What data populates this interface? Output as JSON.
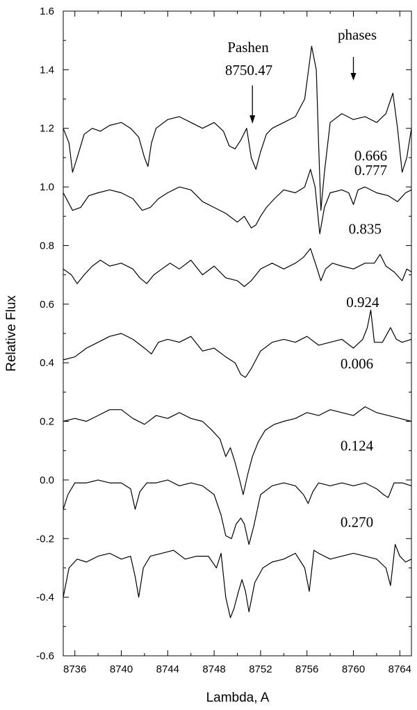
{
  "chart_data": {
    "type": "line",
    "title": "",
    "xlabel": "Lambda, A",
    "ylabel": "Relative Flux",
    "xlim": [
      8735,
      8765
    ],
    "ylim": [
      -0.6,
      1.6
    ],
    "x_ticks": [
      8736,
      8740,
      8744,
      8748,
      8752,
      8756,
      8760,
      8764
    ],
    "y_ticks": [
      -0.6,
      -0.4,
      -0.2,
      0.0,
      0.2,
      0.4,
      0.6,
      0.8,
      1.0,
      1.2,
      1.4,
      1.6
    ],
    "y_tick_labels": [
      "-0.6",
      "-0.4",
      "-0.2",
      "0.0",
      "0.2",
      "0.4",
      "0.6",
      "0.8",
      "1.0",
      "1.2",
      "1.4",
      "1.6"
    ],
    "grid": false,
    "annotations": {
      "pashen_label_1": "Pashen",
      "pashen_label_2": "8750.47",
      "pashen_arrow_x": 8751.3,
      "phases_label": "phases",
      "phases_arrow_x": 8760.0
    },
    "series": [
      {
        "name": "0.666",
        "x": [
          8735.0,
          8735.5,
          8735.8,
          8736.2,
          8736.8,
          8737.5,
          8738.2,
          8739.0,
          8740.0,
          8740.8,
          8741.5,
          8742.0,
          8742.3,
          8742.6,
          8743.0,
          8744.0,
          8745.0,
          8746.0,
          8747.0,
          8748.0,
          8748.8,
          8749.3,
          8749.8,
          8750.3,
          8750.8,
          8751.2,
          8751.6,
          8752.0,
          8752.5,
          8753.0,
          8754.0,
          8755.0,
          8755.8,
          8756.4,
          8756.8,
          8757.0,
          8757.2,
          8757.5,
          8758.0,
          8759.0,
          8760.0,
          8761.0,
          8762.0,
          8762.8,
          8763.4,
          8763.8,
          8764.2,
          8764.6,
          8765.0
        ],
        "y": [
          1.2,
          1.15,
          1.05,
          1.1,
          1.18,
          1.2,
          1.19,
          1.21,
          1.22,
          1.2,
          1.17,
          1.1,
          1.07,
          1.15,
          1.2,
          1.23,
          1.24,
          1.22,
          1.2,
          1.22,
          1.19,
          1.14,
          1.13,
          1.16,
          1.2,
          1.1,
          1.06,
          1.12,
          1.18,
          1.2,
          1.22,
          1.24,
          1.3,
          1.48,
          1.4,
          1.15,
          0.92,
          1.05,
          1.22,
          1.25,
          1.23,
          1.24,
          1.22,
          1.25,
          1.32,
          1.2,
          1.05,
          1.1,
          1.2
        ]
      },
      {
        "name": "0.777",
        "x": [
          8735.0,
          8735.8,
          8736.5,
          8737.2,
          8738.0,
          8739.0,
          8740.0,
          8741.0,
          8741.8,
          8742.5,
          8743.2,
          8744.0,
          8745.0,
          8746.0,
          8747.0,
          8748.0,
          8749.0,
          8750.0,
          8750.6,
          8751.2,
          8751.6,
          8752.0,
          8752.5,
          8753.2,
          8754.0,
          8755.0,
          8755.8,
          8756.3,
          8756.7,
          8757.1,
          8757.5,
          8758.0,
          8759.0,
          8759.6,
          8760.0,
          8760.4,
          8761.0,
          8762.0,
          8763.0,
          8763.8,
          8764.5,
          8765.0
        ],
        "y": [
          0.98,
          0.92,
          0.93,
          0.97,
          0.98,
          0.99,
          0.98,
          0.96,
          0.92,
          0.93,
          0.96,
          0.98,
          1.0,
          0.99,
          0.95,
          0.93,
          0.91,
          0.88,
          0.9,
          0.86,
          0.87,
          0.9,
          0.93,
          0.96,
          0.99,
          0.98,
          1.0,
          1.06,
          1.0,
          0.84,
          0.93,
          0.98,
          0.99,
          0.98,
          0.94,
          0.99,
          1.0,
          0.98,
          0.97,
          0.95,
          0.98,
          0.99
        ]
      },
      {
        "name": "0.835",
        "x": [
          8735.0,
          8735.7,
          8736.2,
          8736.8,
          8737.5,
          8738.2,
          8739.0,
          8740.0,
          8741.0,
          8741.6,
          8742.2,
          8742.8,
          8743.5,
          8744.2,
          8745.0,
          8746.0,
          8747.0,
          8748.0,
          8749.0,
          8750.0,
          8750.6,
          8751.2,
          8752.0,
          8753.0,
          8754.0,
          8755.0,
          8755.7,
          8756.3,
          8756.8,
          8757.2,
          8757.6,
          8758.2,
          8759.0,
          8760.0,
          8761.0,
          8761.8,
          8762.3,
          8762.8,
          8763.5,
          8764.2,
          8764.6,
          8765.0
        ],
        "y": [
          0.72,
          0.7,
          0.67,
          0.7,
          0.73,
          0.75,
          0.73,
          0.74,
          0.72,
          0.69,
          0.67,
          0.7,
          0.72,
          0.74,
          0.72,
          0.75,
          0.7,
          0.73,
          0.69,
          0.68,
          0.66,
          0.68,
          0.72,
          0.74,
          0.72,
          0.74,
          0.76,
          0.79,
          0.73,
          0.68,
          0.72,
          0.74,
          0.73,
          0.72,
          0.74,
          0.74,
          0.77,
          0.73,
          0.71,
          0.68,
          0.72,
          0.71
        ]
      },
      {
        "name": "0.924",
        "x": [
          8735.0,
          8736.0,
          8737.0,
          8738.0,
          8739.0,
          8740.0,
          8741.0,
          8742.0,
          8742.6,
          8743.2,
          8744.0,
          8745.0,
          8746.0,
          8747.0,
          8748.0,
          8749.0,
          8749.8,
          8750.3,
          8750.7,
          8751.2,
          8752.0,
          8753.0,
          8754.0,
          8755.0,
          8756.0,
          8757.0,
          8758.0,
          8759.0,
          8760.0,
          8760.8,
          8761.2,
          8761.5,
          8761.8,
          8762.5,
          8763.2,
          8763.7,
          8764.2,
          8765.0
        ],
        "y": [
          0.41,
          0.42,
          0.45,
          0.47,
          0.49,
          0.5,
          0.48,
          0.45,
          0.43,
          0.47,
          0.48,
          0.47,
          0.49,
          0.44,
          0.45,
          0.42,
          0.4,
          0.36,
          0.35,
          0.38,
          0.44,
          0.47,
          0.48,
          0.47,
          0.49,
          0.46,
          0.47,
          0.48,
          0.45,
          0.48,
          0.52,
          0.58,
          0.47,
          0.47,
          0.52,
          0.48,
          0.47,
          0.48
        ]
      },
      {
        "name": "0.006",
        "x": [
          8735.0,
          8736.0,
          8737.0,
          8738.0,
          8739.0,
          8740.0,
          8741.0,
          8742.0,
          8743.0,
          8744.0,
          8745.0,
          8746.0,
          8747.0,
          8747.8,
          8748.5,
          8749.0,
          8749.4,
          8749.8,
          8750.2,
          8750.5,
          8750.9,
          8751.3,
          8751.8,
          8752.4,
          8753.2,
          8754.0,
          8755.0,
          8756.0,
          8757.0,
          8758.0,
          8759.0,
          8760.0,
          8761.0,
          8762.0,
          8763.0,
          8764.0,
          8765.0
        ],
        "y": [
          0.2,
          0.21,
          0.2,
          0.22,
          0.24,
          0.24,
          0.21,
          0.19,
          0.22,
          0.21,
          0.23,
          0.21,
          0.2,
          0.17,
          0.14,
          0.08,
          0.11,
          0.06,
          0.0,
          -0.05,
          0.02,
          0.08,
          0.13,
          0.17,
          0.19,
          0.2,
          0.21,
          0.23,
          0.22,
          0.24,
          0.23,
          0.22,
          0.25,
          0.23,
          0.22,
          0.21,
          0.2
        ]
      },
      {
        "name": "0.124",
        "x": [
          8735.0,
          8735.4,
          8736.0,
          8737.0,
          8738.0,
          8739.0,
          8740.0,
          8740.8,
          8741.2,
          8741.6,
          8742.2,
          8743.0,
          8744.0,
          8745.0,
          8746.0,
          8747.0,
          8748.0,
          8748.6,
          8749.0,
          8749.5,
          8749.9,
          8750.3,
          8750.6,
          8751.0,
          8751.4,
          8752.0,
          8753.0,
          8754.0,
          8755.0,
          8755.7,
          8756.1,
          8756.5,
          8757.0,
          8758.0,
          8759.0,
          8760.0,
          8761.0,
          8762.0,
          8762.6,
          8763.0,
          8763.5,
          8764.2,
          8765.0
        ],
        "y": [
          -0.1,
          -0.05,
          -0.01,
          -0.01,
          0.0,
          -0.01,
          -0.01,
          -0.03,
          -0.1,
          -0.04,
          -0.01,
          -0.01,
          0.0,
          -0.02,
          -0.01,
          -0.02,
          -0.05,
          -0.12,
          -0.19,
          -0.2,
          -0.15,
          -0.13,
          -0.15,
          -0.22,
          -0.16,
          -0.05,
          -0.02,
          -0.01,
          -0.02,
          -0.05,
          -0.08,
          -0.04,
          -0.01,
          -0.02,
          -0.01,
          -0.02,
          -0.01,
          -0.03,
          -0.05,
          -0.06,
          -0.01,
          -0.01,
          -0.02
        ]
      },
      {
        "name": "0.270",
        "x": [
          8735.0,
          8735.5,
          8736.2,
          8737.0,
          8738.0,
          8739.0,
          8740.0,
          8740.8,
          8741.2,
          8741.5,
          8741.9,
          8742.5,
          8743.5,
          8744.5,
          8745.5,
          8746.5,
          8747.5,
          8748.2,
          8748.6,
          8749.0,
          8749.4,
          8749.7,
          8750.1,
          8750.4,
          8750.7,
          8751.0,
          8751.5,
          8752.2,
          8753.0,
          8754.0,
          8755.0,
          8755.8,
          8756.2,
          8756.6,
          8757.0,
          8758.0,
          8759.0,
          8760.0,
          8761.0,
          8762.0,
          8762.8,
          8763.2,
          8763.6,
          8764.0,
          8764.5,
          8765.0
        ],
        "y": [
          -0.4,
          -0.3,
          -0.27,
          -0.28,
          -0.26,
          -0.25,
          -0.27,
          -0.26,
          -0.33,
          -0.4,
          -0.3,
          -0.26,
          -0.25,
          -0.24,
          -0.27,
          -0.26,
          -0.26,
          -0.3,
          -0.25,
          -0.4,
          -0.47,
          -0.44,
          -0.38,
          -0.34,
          -0.38,
          -0.45,
          -0.35,
          -0.3,
          -0.28,
          -0.27,
          -0.25,
          -0.3,
          -0.38,
          -0.24,
          -0.25,
          -0.27,
          -0.26,
          -0.25,
          -0.26,
          -0.27,
          -0.3,
          -0.36,
          -0.22,
          -0.26,
          -0.28,
          -0.27
        ]
      }
    ]
  }
}
